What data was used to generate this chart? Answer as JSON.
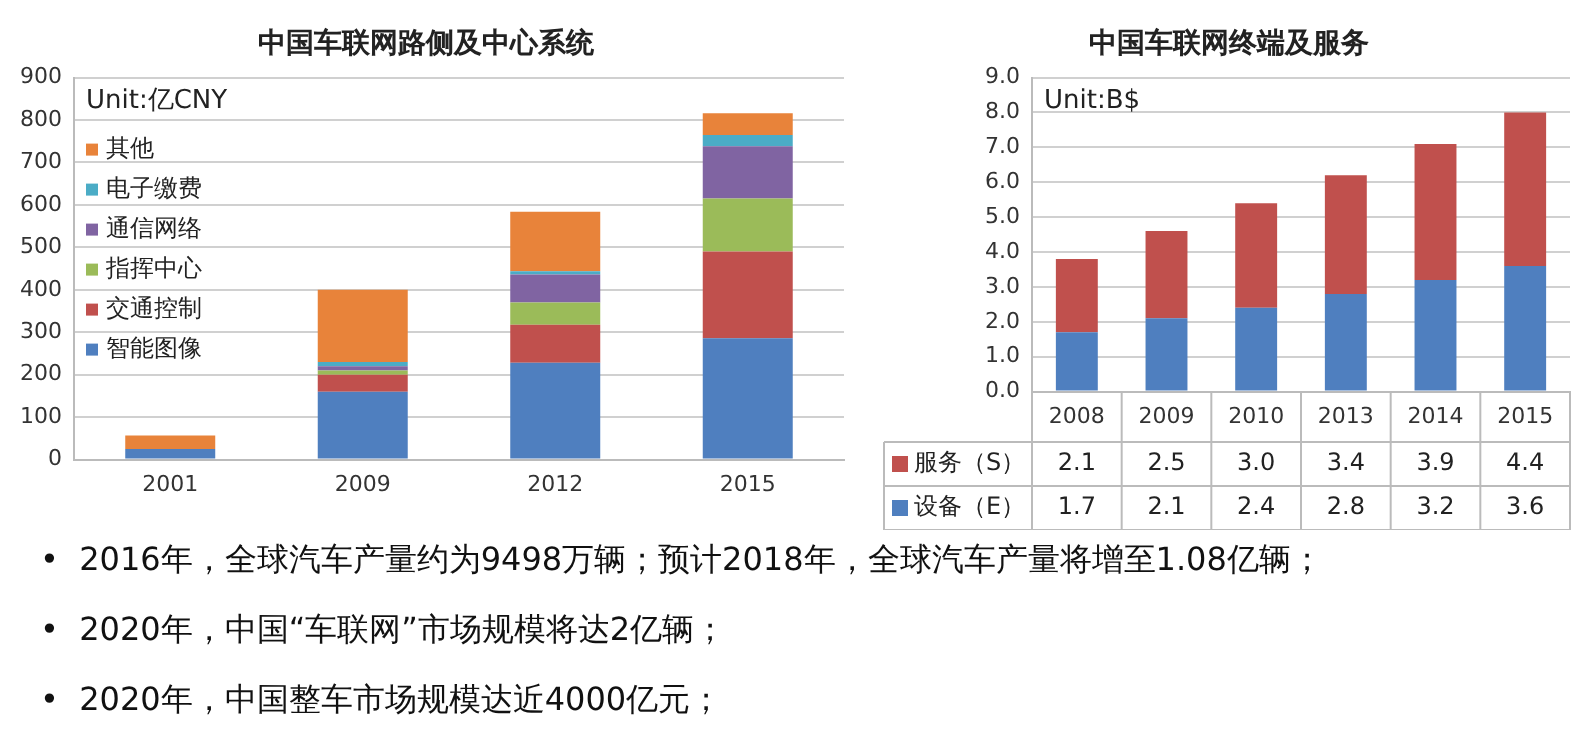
{
  "chart_data": [
    {
      "type": "bar",
      "title": "中国车联网路侧及中心系统",
      "annotations": [
        "Unit:亿CNY"
      ],
      "categories": [
        "2001",
        "2009",
        "2012",
        "2015"
      ],
      "stacked": true,
      "ylim": [
        0,
        900
      ],
      "yticks": [
        0,
        100,
        200,
        300,
        400,
        500,
        600,
        700,
        800,
        900
      ],
      "grid": "y",
      "legend": "top left",
      "series": [
        {
          "name": "智能图像",
          "color": "#4f7fbf",
          "values": [
            25,
            160,
            228,
            286
          ]
        },
        {
          "name": "交通控制",
          "color": "#c0504d",
          "values": [
            0,
            40,
            90,
            204
          ]
        },
        {
          "name": "指挥中心",
          "color": "#9bbb59",
          "values": [
            0,
            10,
            52,
            125
          ]
        },
        {
          "name": "通信网络",
          "color": "#8064a2",
          "values": [
            0,
            10,
            66,
            123
          ]
        },
        {
          "name": "电子缴费",
          "color": "#4bacc6",
          "values": [
            0,
            10,
            8,
            27
          ]
        },
        {
          "name": "其他",
          "color": "#e8833a",
          "values": [
            32,
            170,
            140,
            51
          ]
        }
      ]
    },
    {
      "type": "bar",
      "title": "中国车联网终端及服务",
      "annotations": [
        "Unit:B$"
      ],
      "categories": [
        "2008",
        "2009",
        "2010",
        "2013",
        "2014",
        "2015"
      ],
      "stacked": true,
      "ylim": [
        0,
        9
      ],
      "yticks": [
        {
          "value": 0,
          "label": "0.0"
        },
        {
          "value": 1,
          "label": "1.0"
        },
        {
          "value": 2,
          "label": "2.0"
        },
        {
          "value": 3,
          "label": "3.0"
        },
        {
          "value": 4,
          "label": "4.0"
        },
        {
          "value": 5,
          "label": "5.0"
        },
        {
          "value": 6,
          "label": "6.0"
        },
        {
          "value": 7,
          "label": "7.0"
        },
        {
          "value": 8,
          "label": "8.0"
        },
        {
          "value": 9,
          "label": "9.0"
        }
      ],
      "grid": "y",
      "legend": "bottom",
      "series": [
        {
          "name": "设备（E）",
          "color": "#4f7fbf",
          "values": [
            1.7,
            2.1,
            2.4,
            2.8,
            3.2,
            3.6
          ],
          "value_labels": [
            "1.7",
            "2.1",
            "2.4",
            "2.8",
            "3.2",
            "3.6"
          ]
        },
        {
          "name": "服务（S）",
          "color": "#c0504d",
          "values": [
            2.1,
            2.5,
            3.0,
            3.4,
            3.9,
            4.4
          ],
          "value_labels": [
            "2.1",
            "2.5",
            "3.0",
            "3.4",
            "3.9",
            "4.4"
          ]
        }
      ]
    },
    {
      "type": "other",
      "annotations": [
        "•  2016年，全球汽车产量约为9498万辆；预计2018年，全球汽车产量将增至1.08亿辆；",
        "•  2020年，中国“车联网”市场规模将达2亿辆；",
        "•  2020年，中国整车市场规模达近4000亿元；"
      ]
    }
  ]
}
